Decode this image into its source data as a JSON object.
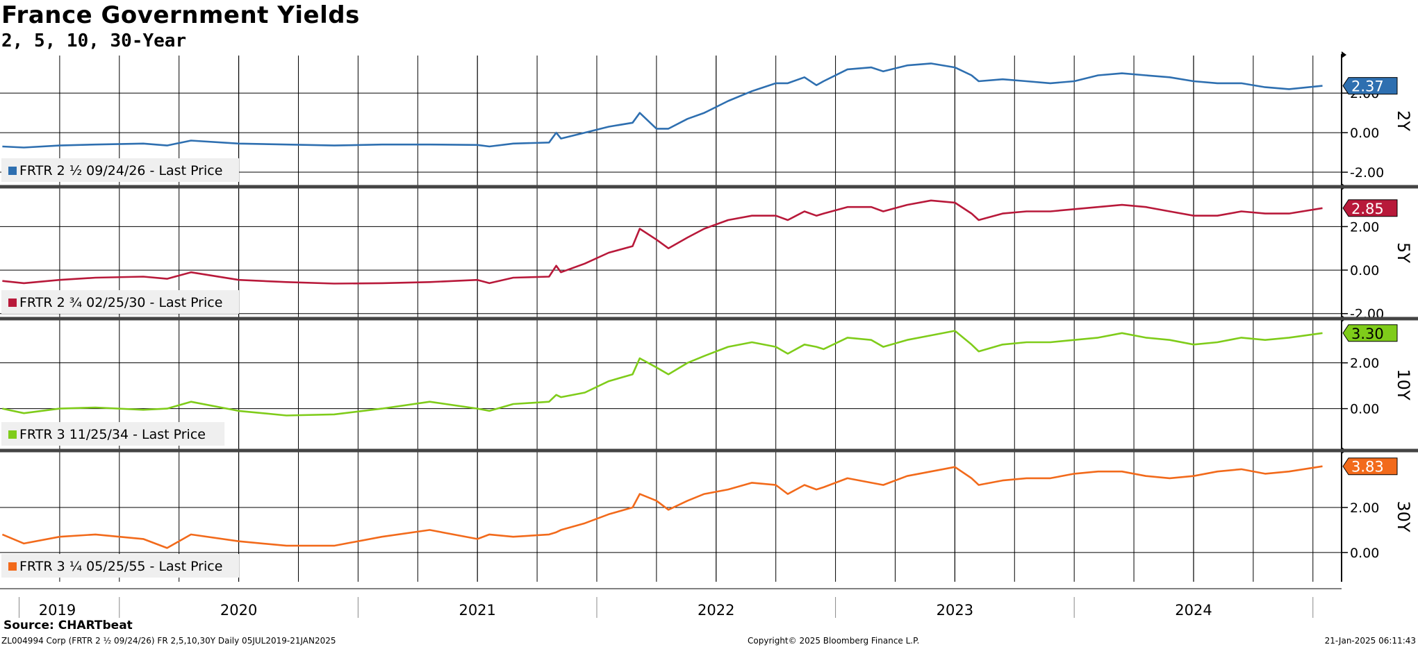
{
  "header": {
    "title": "France Government Yields",
    "subtitle": "2, 5, 10, 30-Year"
  },
  "footer": {
    "source": "Source: CHARTbeat",
    "left": "ZL004994 Corp (FRTR 2 ½ 09/24/26) FR 2,5,10,30Y  Daily 05JUL2019-21JAN2025",
    "center": "Copyright© 2025 Bloomberg Finance L.P.",
    "right": "21-Jan-2025 06:11:43"
  },
  "chart_data": [
    {
      "type": "line",
      "panel_label": "2Y",
      "legend": "FRTR 2 ½ 09/24/26 - Last Price",
      "color": "#2e6fb0",
      "last_value": "2.37",
      "ylim": [
        -2.7,
        3.9
      ],
      "yticks": [
        "2.00",
        "0.00",
        "-2.00"
      ],
      "ytick_values": [
        2,
        0,
        -2
      ],
      "x": [
        2019.51,
        2019.6,
        2019.75,
        2019.9,
        2020.1,
        2020.2,
        2020.3,
        2020.5,
        2020.7,
        2020.9,
        2021.1,
        2021.3,
        2021.5,
        2021.55,
        2021.65,
        2021.8,
        2021.83,
        2021.85,
        2021.95,
        2022.05,
        2022.15,
        2022.18,
        2022.25,
        2022.3,
        2022.38,
        2022.45,
        2022.55,
        2022.65,
        2022.75,
        2022.8,
        2022.87,
        2022.92,
        2022.95,
        2023.05,
        2023.15,
        2023.2,
        2023.3,
        2023.4,
        2023.5,
        2023.57,
        2023.6,
        2023.7,
        2023.8,
        2023.9,
        2024.0,
        2024.1,
        2024.2,
        2024.3,
        2024.4,
        2024.5,
        2024.6,
        2024.7,
        2024.8,
        2024.9,
        2025.04
      ],
      "values": [
        -0.7,
        -0.75,
        -0.65,
        -0.6,
        -0.55,
        -0.65,
        -0.4,
        -0.55,
        -0.6,
        -0.65,
        -0.6,
        -0.6,
        -0.62,
        -0.7,
        -0.55,
        -0.5,
        0.0,
        -0.3,
        0.0,
        0.3,
        0.5,
        1.0,
        0.2,
        0.2,
        0.7,
        1.0,
        1.6,
        2.1,
        2.5,
        2.5,
        2.8,
        2.4,
        2.6,
        3.2,
        3.3,
        3.1,
        3.4,
        3.5,
        3.3,
        2.9,
        2.6,
        2.7,
        2.6,
        2.5,
        2.6,
        2.9,
        3.0,
        2.9,
        2.8,
        2.6,
        2.5,
        2.5,
        2.3,
        2.2,
        2.37
      ]
    },
    {
      "type": "line",
      "panel_label": "5Y",
      "legend": "FRTR 2 ¾ 02/25/30 - Last Price",
      "color": "#b8193a",
      "last_value": "2.85",
      "ylim": [
        -2.2,
        3.8
      ],
      "yticks": [
        "2.00",
        "0.00",
        "-2.00"
      ],
      "ytick_values": [
        2,
        0,
        -2
      ],
      "x": [
        2019.51,
        2019.6,
        2019.75,
        2019.9,
        2020.1,
        2020.2,
        2020.3,
        2020.5,
        2020.7,
        2020.9,
        2021.1,
        2021.3,
        2021.5,
        2021.55,
        2021.65,
        2021.8,
        2021.83,
        2021.85,
        2021.95,
        2022.05,
        2022.15,
        2022.18,
        2022.25,
        2022.3,
        2022.38,
        2022.45,
        2022.55,
        2022.65,
        2022.75,
        2022.8,
        2022.87,
        2022.92,
        2022.95,
        2023.05,
        2023.15,
        2023.2,
        2023.3,
        2023.4,
        2023.5,
        2023.57,
        2023.6,
        2023.7,
        2023.8,
        2023.9,
        2024.0,
        2024.1,
        2024.2,
        2024.3,
        2024.4,
        2024.5,
        2024.6,
        2024.7,
        2024.8,
        2024.9,
        2025.04
      ],
      "values": [
        -0.5,
        -0.6,
        -0.45,
        -0.35,
        -0.3,
        -0.4,
        -0.1,
        -0.45,
        -0.55,
        -0.62,
        -0.6,
        -0.55,
        -0.45,
        -0.6,
        -0.35,
        -0.3,
        0.2,
        -0.1,
        0.3,
        0.8,
        1.1,
        1.9,
        1.4,
        1.0,
        1.5,
        1.9,
        2.3,
        2.5,
        2.5,
        2.3,
        2.7,
        2.5,
        2.6,
        2.9,
        2.9,
        2.7,
        3.0,
        3.2,
        3.1,
        2.6,
        2.3,
        2.6,
        2.7,
        2.7,
        2.8,
        2.9,
        3.0,
        2.9,
        2.7,
        2.5,
        2.5,
        2.7,
        2.6,
        2.6,
        2.85
      ]
    },
    {
      "type": "line",
      "panel_label": "10Y",
      "legend": "FRTR 3 11/25/34 - Last Price",
      "color": "#7fcc1a",
      "last_value": "3.30",
      "ylim": [
        -1.8,
        3.9
      ],
      "yticks": [
        "2.00",
        "0.00"
      ],
      "ytick_values": [
        2,
        0
      ],
      "x": [
        2019.51,
        2019.6,
        2019.75,
        2019.9,
        2020.1,
        2020.2,
        2020.3,
        2020.5,
        2020.7,
        2020.9,
        2021.1,
        2021.3,
        2021.5,
        2021.55,
        2021.65,
        2021.8,
        2021.83,
        2021.85,
        2021.95,
        2022.05,
        2022.15,
        2022.18,
        2022.25,
        2022.3,
        2022.38,
        2022.45,
        2022.55,
        2022.65,
        2022.75,
        2022.8,
        2022.87,
        2022.92,
        2022.95,
        2023.05,
        2023.15,
        2023.2,
        2023.3,
        2023.4,
        2023.5,
        2023.57,
        2023.6,
        2023.7,
        2023.8,
        2023.9,
        2024.0,
        2024.1,
        2024.2,
        2024.3,
        2024.4,
        2024.5,
        2024.6,
        2024.7,
        2024.8,
        2024.9,
        2025.04
      ],
      "values": [
        0.0,
        -0.2,
        0.0,
        0.05,
        -0.05,
        0.0,
        0.3,
        -0.1,
        -0.3,
        -0.25,
        0.0,
        0.3,
        0.0,
        -0.1,
        0.2,
        0.3,
        0.6,
        0.5,
        0.7,
        1.2,
        1.5,
        2.2,
        1.8,
        1.5,
        2.0,
        2.3,
        2.7,
        2.9,
        2.7,
        2.4,
        2.8,
        2.7,
        2.6,
        3.1,
        3.0,
        2.7,
        3.0,
        3.2,
        3.4,
        2.8,
        2.5,
        2.8,
        2.9,
        2.9,
        3.0,
        3.1,
        3.3,
        3.1,
        3.0,
        2.8,
        2.9,
        3.1,
        3.0,
        3.1,
        3.3
      ]
    },
    {
      "type": "line",
      "panel_label": "30Y",
      "legend": "FRTR 3 ¼ 05/25/55 - Last Price",
      "color": "#f26a1b",
      "last_value": "3.83",
      "ylim": [
        -1.3,
        4.5
      ],
      "yticks": [
        "2.00",
        "0.00"
      ],
      "ytick_values": [
        2,
        0
      ],
      "x": [
        2019.51,
        2019.6,
        2019.75,
        2019.9,
        2020.1,
        2020.2,
        2020.3,
        2020.5,
        2020.7,
        2020.9,
        2021.1,
        2021.3,
        2021.5,
        2021.55,
        2021.65,
        2021.8,
        2021.83,
        2021.85,
        2021.95,
        2022.05,
        2022.15,
        2022.18,
        2022.25,
        2022.3,
        2022.38,
        2022.45,
        2022.55,
        2022.65,
        2022.75,
        2022.8,
        2022.87,
        2022.92,
        2022.95,
        2023.05,
        2023.15,
        2023.2,
        2023.3,
        2023.4,
        2023.5,
        2023.57,
        2023.6,
        2023.7,
        2023.8,
        2023.9,
        2024.0,
        2024.1,
        2024.2,
        2024.3,
        2024.4,
        2024.5,
        2024.6,
        2024.7,
        2024.8,
        2024.9,
        2025.04
      ],
      "values": [
        0.8,
        0.4,
        0.7,
        0.8,
        0.6,
        0.2,
        0.8,
        0.5,
        0.3,
        0.3,
        0.7,
        1.0,
        0.6,
        0.8,
        0.7,
        0.8,
        0.9,
        1.0,
        1.3,
        1.7,
        2.0,
        2.6,
        2.3,
        1.9,
        2.3,
        2.6,
        2.8,
        3.1,
        3.0,
        2.6,
        3.0,
        2.8,
        2.9,
        3.3,
        3.1,
        3.0,
        3.4,
        3.6,
        3.8,
        3.3,
        3.0,
        3.2,
        3.3,
        3.3,
        3.5,
        3.6,
        3.6,
        3.4,
        3.3,
        3.4,
        3.6,
        3.7,
        3.5,
        3.6,
        3.83
      ]
    }
  ],
  "x_axis": {
    "labels": [
      "2019",
      "2020",
      "2021",
      "2022",
      "2023",
      "2024"
    ]
  }
}
